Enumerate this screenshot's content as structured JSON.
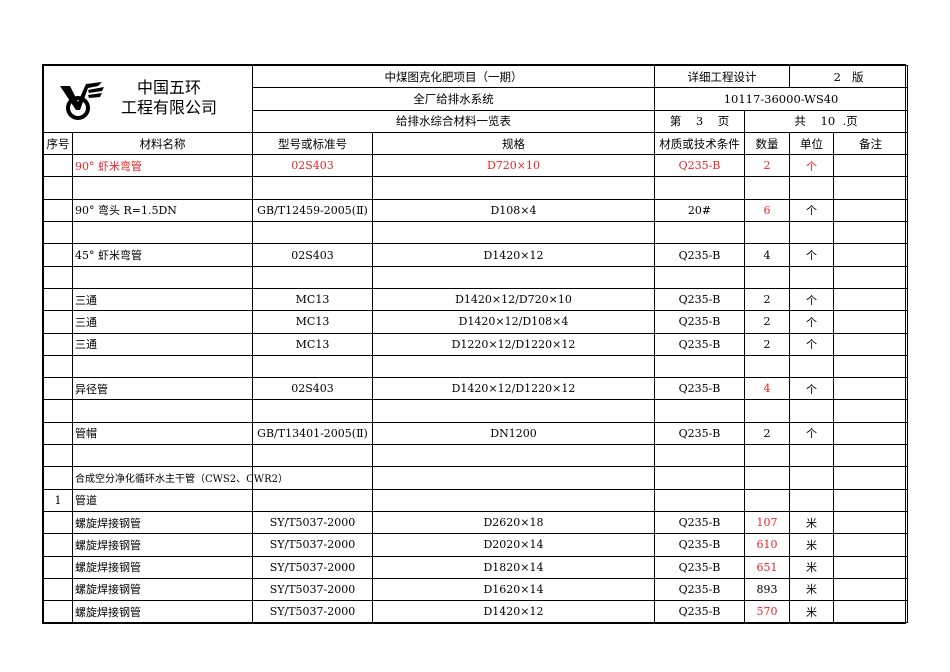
{
  "header": {
    "company_line1": "中国五环",
    "company_line2": "工程有限公司",
    "project": "中煤图克化肥项目（一期）",
    "stage": "详细工程设计",
    "version_num": "2",
    "version_label": "版",
    "system": "全厂给排水系统",
    "doc_no": "10117-36000-WS40",
    "title": "给排水综合材料一览表",
    "page_prefix": "第",
    "page_num": "3",
    "page_suffix": "页",
    "total_prefix": "共",
    "total_num": "10",
    "total_suffix": ".页"
  },
  "columns": [
    "序号",
    "材料名称",
    "型号或标准号",
    "规格",
    "材质或技术条件",
    "数量",
    "单位",
    "备注"
  ],
  "colors": {
    "red": "#e8232a",
    "black": "#000000"
  },
  "rows": [
    {
      "no": "",
      "name": "90° 虾米弯管",
      "std": "02S403",
      "spec": "D720×10",
      "mat": "Q235-B",
      "qty": "2",
      "unit": "个",
      "note": "",
      "red": "all"
    },
    {
      "no": "",
      "name": "",
      "std": "",
      "spec": "",
      "mat": "",
      "qty": "",
      "unit": "",
      "note": ""
    },
    {
      "no": "",
      "name": "90° 弯头       R=1.5DN",
      "std": "GB/T12459-2005(Ⅱ)",
      "spec": "D108×4",
      "mat": "20#",
      "qty": "6",
      "unit": "个",
      "note": "",
      "red": "qty"
    },
    {
      "no": "",
      "name": "",
      "std": "",
      "spec": "",
      "mat": "",
      "qty": "",
      "unit": "",
      "note": ""
    },
    {
      "no": "",
      "name": "45° 虾米弯管",
      "std": "02S403",
      "spec": "D1420×12",
      "mat": "Q235-B",
      "qty": "4",
      "unit": "个",
      "note": ""
    },
    {
      "no": "",
      "name": "",
      "std": "",
      "spec": "",
      "mat": "",
      "qty": "",
      "unit": "",
      "note": ""
    },
    {
      "no": "",
      "name": "三通",
      "std": "MC13",
      "spec": "D1420×12/D720×10",
      "mat": "Q235-B",
      "qty": "2",
      "unit": "个",
      "note": ""
    },
    {
      "no": "",
      "name": "三通",
      "std": "MC13",
      "spec": "D1420×12/D108×4",
      "mat": "Q235-B",
      "qty": "2",
      "unit": "个",
      "note": ""
    },
    {
      "no": "",
      "name": "三通",
      "std": "MC13",
      "spec": "D1220×12/D1220×12",
      "mat": "Q235-B",
      "qty": "2",
      "unit": "个",
      "note": ""
    },
    {
      "no": "",
      "name": "",
      "std": "",
      "spec": "",
      "mat": "",
      "qty": "",
      "unit": "",
      "note": ""
    },
    {
      "no": "",
      "name": "异径管",
      "std": "02S403",
      "spec": "D1420×12/D1220×12",
      "mat": "Q235-B",
      "qty": "4",
      "unit": "个",
      "note": "",
      "red": "qty"
    },
    {
      "no": "",
      "name": "",
      "std": "",
      "spec": "",
      "mat": "",
      "qty": "",
      "unit": "",
      "note": ""
    },
    {
      "no": "",
      "name": "管帽",
      "std": "GB/T13401-2005(Ⅱ)",
      "spec": "DN1200",
      "mat": "Q235-B",
      "qty": "2",
      "unit": "个",
      "note": ""
    },
    {
      "no": "",
      "name": "",
      "std": "",
      "spec": "",
      "mat": "",
      "qty": "",
      "unit": "",
      "note": ""
    },
    {
      "no": "",
      "name": "合成空分净化循环水主干管（CWS2、CWR2）",
      "std": "",
      "spec": "",
      "mat": "",
      "qty": "",
      "unit": "",
      "note": "",
      "small": true
    },
    {
      "no": "1",
      "name": "管道",
      "std": "",
      "spec": "",
      "mat": "",
      "qty": "",
      "unit": "",
      "note": ""
    },
    {
      "no": "",
      "name": "螺旋焊接钢管",
      "std": "SY/T5037-2000",
      "spec": "D2620×18",
      "mat": "Q235-B",
      "qty": "107",
      "unit": "米",
      "note": "",
      "red": "qty"
    },
    {
      "no": "",
      "name": "螺旋焊接钢管",
      "std": "SY/T5037-2000",
      "spec": "D2020×14",
      "mat": "Q235-B",
      "qty": "610",
      "unit": "米",
      "note": "",
      "red": "qty"
    },
    {
      "no": "",
      "name": "螺旋焊接钢管",
      "std": "SY/T5037-2000",
      "spec": "D1820×14",
      "mat": "Q235-B",
      "qty": "651",
      "unit": "米",
      "note": "",
      "red": "qty"
    },
    {
      "no": "",
      "name": "螺旋焊接钢管",
      "std": "SY/T5037-2000",
      "spec": "D1620×14",
      "mat": "Q235-B",
      "qty": "893",
      "unit": "米",
      "note": ""
    },
    {
      "no": "",
      "name": "螺旋焊接钢管",
      "std": "SY/T5037-2000",
      "spec": "D1420×12",
      "mat": "Q235-B",
      "qty": "570",
      "unit": "米",
      "note": "",
      "red": "qty"
    }
  ]
}
